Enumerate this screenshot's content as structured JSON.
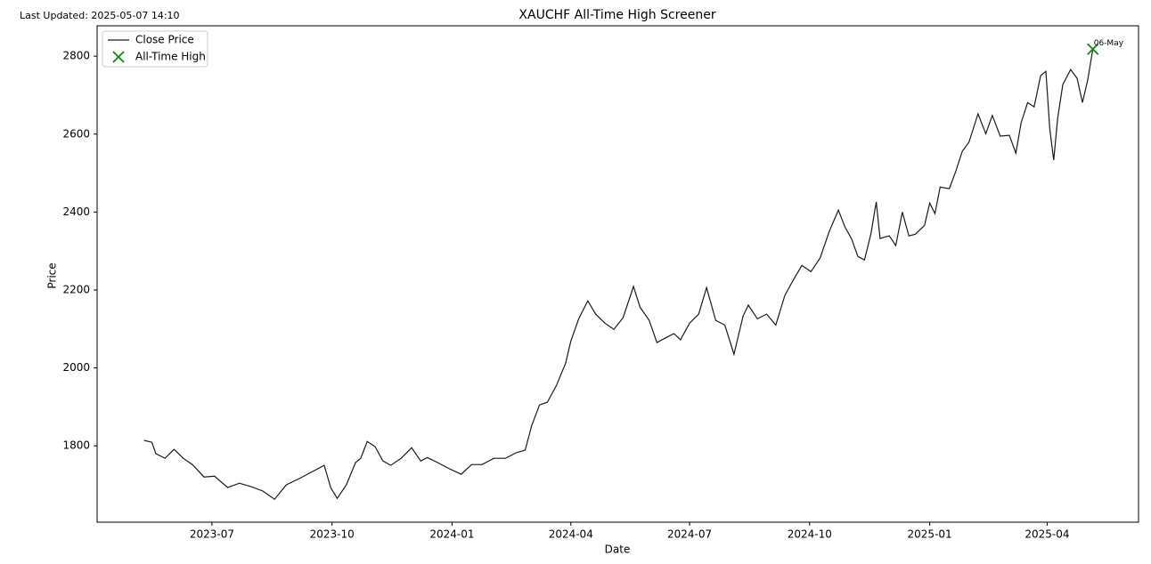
{
  "chart_data": {
    "type": "line",
    "title": "XAUCHF All-Time High Screener",
    "subtitle": "Last Updated: 2025-05-07 14:10",
    "xlabel": "Date",
    "ylabel": "Price",
    "x": [
      "2023-05-10",
      "2023-05-16",
      "2023-05-19",
      "2023-05-26",
      "2023-06-02",
      "2023-06-09",
      "2023-06-16",
      "2023-06-25",
      "2023-07-03",
      "2023-07-13",
      "2023-07-22",
      "2023-07-31",
      "2023-08-09",
      "2023-08-18",
      "2023-08-27",
      "2023-09-06",
      "2023-09-16",
      "2023-09-25",
      "2023-09-30",
      "2023-10-05",
      "2023-10-12",
      "2023-10-19",
      "2023-10-23",
      "2023-10-28",
      "2023-11-03",
      "2023-11-09",
      "2023-11-15",
      "2023-11-23",
      "2023-12-01",
      "2023-12-08",
      "2023-12-13",
      "2023-12-21",
      "2023-12-30",
      "2024-01-08",
      "2024-01-16",
      "2024-01-24",
      "2024-02-02",
      "2024-02-11",
      "2024-02-19",
      "2024-02-26",
      "2024-03-02",
      "2024-03-08",
      "2024-03-14",
      "2024-03-21",
      "2024-03-28",
      "2024-04-01",
      "2024-04-07",
      "2024-04-14",
      "2024-04-20",
      "2024-04-27",
      "2024-05-04",
      "2024-05-11",
      "2024-05-19",
      "2024-05-24",
      "2024-05-31",
      "2024-06-06",
      "2024-06-12",
      "2024-06-19",
      "2024-06-24",
      "2024-07-01",
      "2024-07-08",
      "2024-07-14",
      "2024-07-21",
      "2024-07-28",
      "2024-08-04",
      "2024-08-11",
      "2024-08-15",
      "2024-08-22",
      "2024-08-29",
      "2024-09-05",
      "2024-09-12",
      "2024-09-19",
      "2024-09-25",
      "2024-10-02",
      "2024-10-09",
      "2024-10-16",
      "2024-10-23",
      "2024-10-28",
      "2024-11-02",
      "2024-11-07",
      "2024-11-12",
      "2024-11-17",
      "2024-11-21",
      "2024-11-24",
      "2024-12-01",
      "2024-12-06",
      "2024-12-11",
      "2024-12-16",
      "2024-12-21",
      "2024-12-28",
      "2025-01-01",
      "2025-01-05",
      "2025-01-09",
      "2025-01-16",
      "2025-01-21",
      "2025-01-26",
      "2025-01-31",
      "2025-02-07",
      "2025-02-13",
      "2025-02-18",
      "2025-02-24",
      "2025-03-03",
      "2025-03-08",
      "2025-03-12",
      "2025-03-17",
      "2025-03-22",
      "2025-03-27",
      "2025-03-31",
      "2025-04-03",
      "2025-04-06",
      "2025-04-09",
      "2025-04-13",
      "2025-04-19",
      "2025-04-24",
      "2025-04-28",
      "2025-05-02",
      "2025-05-06"
    ],
    "series": [
      {
        "name": "Close Price",
        "color": "#1a1a1a",
        "values": [
          1814,
          1809,
          1780,
          1768,
          1791,
          1768,
          1752,
          1720,
          1722,
          1693,
          1704,
          1695,
          1684,
          1663,
          1700,
          1716,
          1734,
          1750,
          1693,
          1665,
          1700,
          1757,
          1768,
          1811,
          1798,
          1761,
          1750,
          1768,
          1795,
          1761,
          1770,
          1757,
          1741,
          1727,
          1752,
          1752,
          1768,
          1768,
          1782,
          1789,
          1852,
          1905,
          1912,
          1955,
          2012,
          2069,
          2126,
          2172,
          2138,
          2115,
          2099,
          2129,
          2209,
          2156,
          2122,
          2065,
          2076,
          2088,
          2072,
          2115,
          2138,
          2206,
          2122,
          2110,
          2035,
          2133,
          2161,
          2126,
          2138,
          2110,
          2186,
          2229,
          2263,
          2247,
          2282,
          2350,
          2405,
          2362,
          2332,
          2286,
          2277,
          2345,
          2426,
          2332,
          2339,
          2314,
          2400,
          2339,
          2343,
          2366,
          2423,
          2396,
          2464,
          2460,
          2505,
          2556,
          2579,
          2652,
          2601,
          2648,
          2595,
          2597,
          2551,
          2629,
          2681,
          2670,
          2750,
          2761,
          2613,
          2533,
          2640,
          2727,
          2766,
          2743,
          2681,
          2738,
          2818
        ]
      }
    ],
    "ath": {
      "name": "All-Time High",
      "color": "#1a7f1a",
      "x": "2025-05-06",
      "value": 2818,
      "label": "06-May"
    },
    "xlim": [
      "2023-04-04",
      "2025-06-10"
    ],
    "xticks": [
      "2023-07",
      "2023-10",
      "2024-01",
      "2024-04",
      "2024-07",
      "2024-10",
      "2025-01",
      "2025-04"
    ],
    "ylim": [
      1604,
      2878
    ],
    "yticks": [
      1800,
      2000,
      2200,
      2400,
      2600,
      2800
    ],
    "grid": false,
    "legend": "upper-left"
  }
}
